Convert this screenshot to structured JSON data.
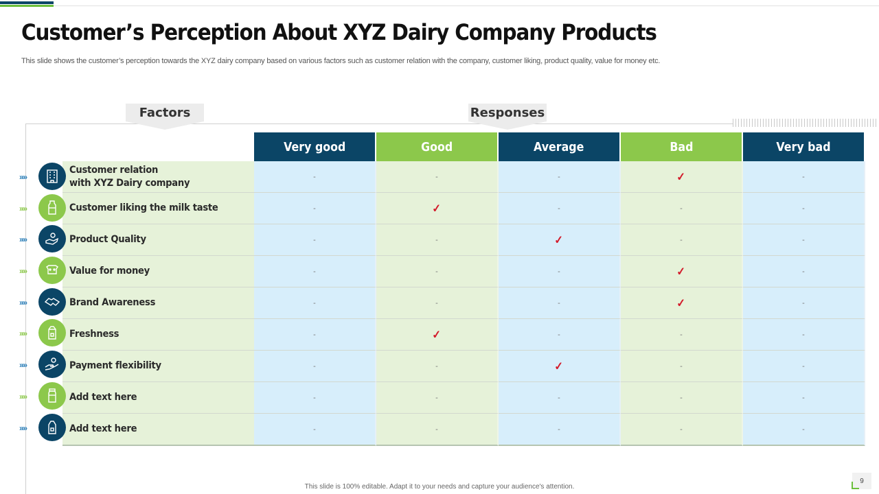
{
  "title": "Customer’s Perception About XYZ Dairy Company Products",
  "subtitle": "This slide shows the customer’s perception towards the XYZ  dairy company based on various factors such as customer relation with the company, customer liking, product quality, value for money etc.",
  "labels": {
    "factors": "Factors",
    "responses": "Responses"
  },
  "columns": [
    "Very good",
    "Good",
    "Average",
    "Bad",
    "Very bad"
  ],
  "rows": [
    {
      "factor": "Customer relation\nwith XYZ Dairy company",
      "icon": "building-icon",
      "cells": [
        "-",
        "-",
        "-",
        "✓",
        "-"
      ]
    },
    {
      "factor": "Customer liking the milk taste",
      "icon": "milk-bottle-icon",
      "cells": [
        "-",
        "✓",
        "-",
        "-",
        "-"
      ]
    },
    {
      "factor": "Product Quality",
      "icon": "quality-hand-icon",
      "cells": [
        "-",
        "-",
        "✓",
        "-",
        "-"
      ]
    },
    {
      "factor": "Value for money",
      "icon": "cow-icon",
      "cells": [
        "-",
        "-",
        "-",
        "✓",
        "-"
      ]
    },
    {
      "factor": "Brand Awareness",
      "icon": "handshake-icon",
      "cells": [
        "-",
        "-",
        "-",
        "✓",
        "-"
      ]
    },
    {
      "factor": "Freshness",
      "icon": "milk-carton-icon",
      "cells": [
        "-",
        "✓",
        "-",
        "-",
        "-"
      ]
    },
    {
      "factor": "Payment flexibility",
      "icon": "payment-hand-icon",
      "cells": [
        "-",
        "-",
        "✓",
        "-",
        "-"
      ]
    },
    {
      "factor": "Add text here",
      "icon": "bottle-icon",
      "cells": [
        "-",
        "-",
        "-",
        "-",
        "-"
      ]
    },
    {
      "factor": "Add text here",
      "icon": "package-icon",
      "cells": [
        "-",
        "-",
        "-",
        "-",
        "-"
      ]
    }
  ],
  "arrows": "»»»",
  "footer": "This slide is 100% editable.  Adapt it to your needs and capture your audience's attention.",
  "page_number": "9",
  "colors": {
    "dark_blue": "#0b4566",
    "green": "#8cc84b",
    "check_red": "#d31b2b"
  }
}
